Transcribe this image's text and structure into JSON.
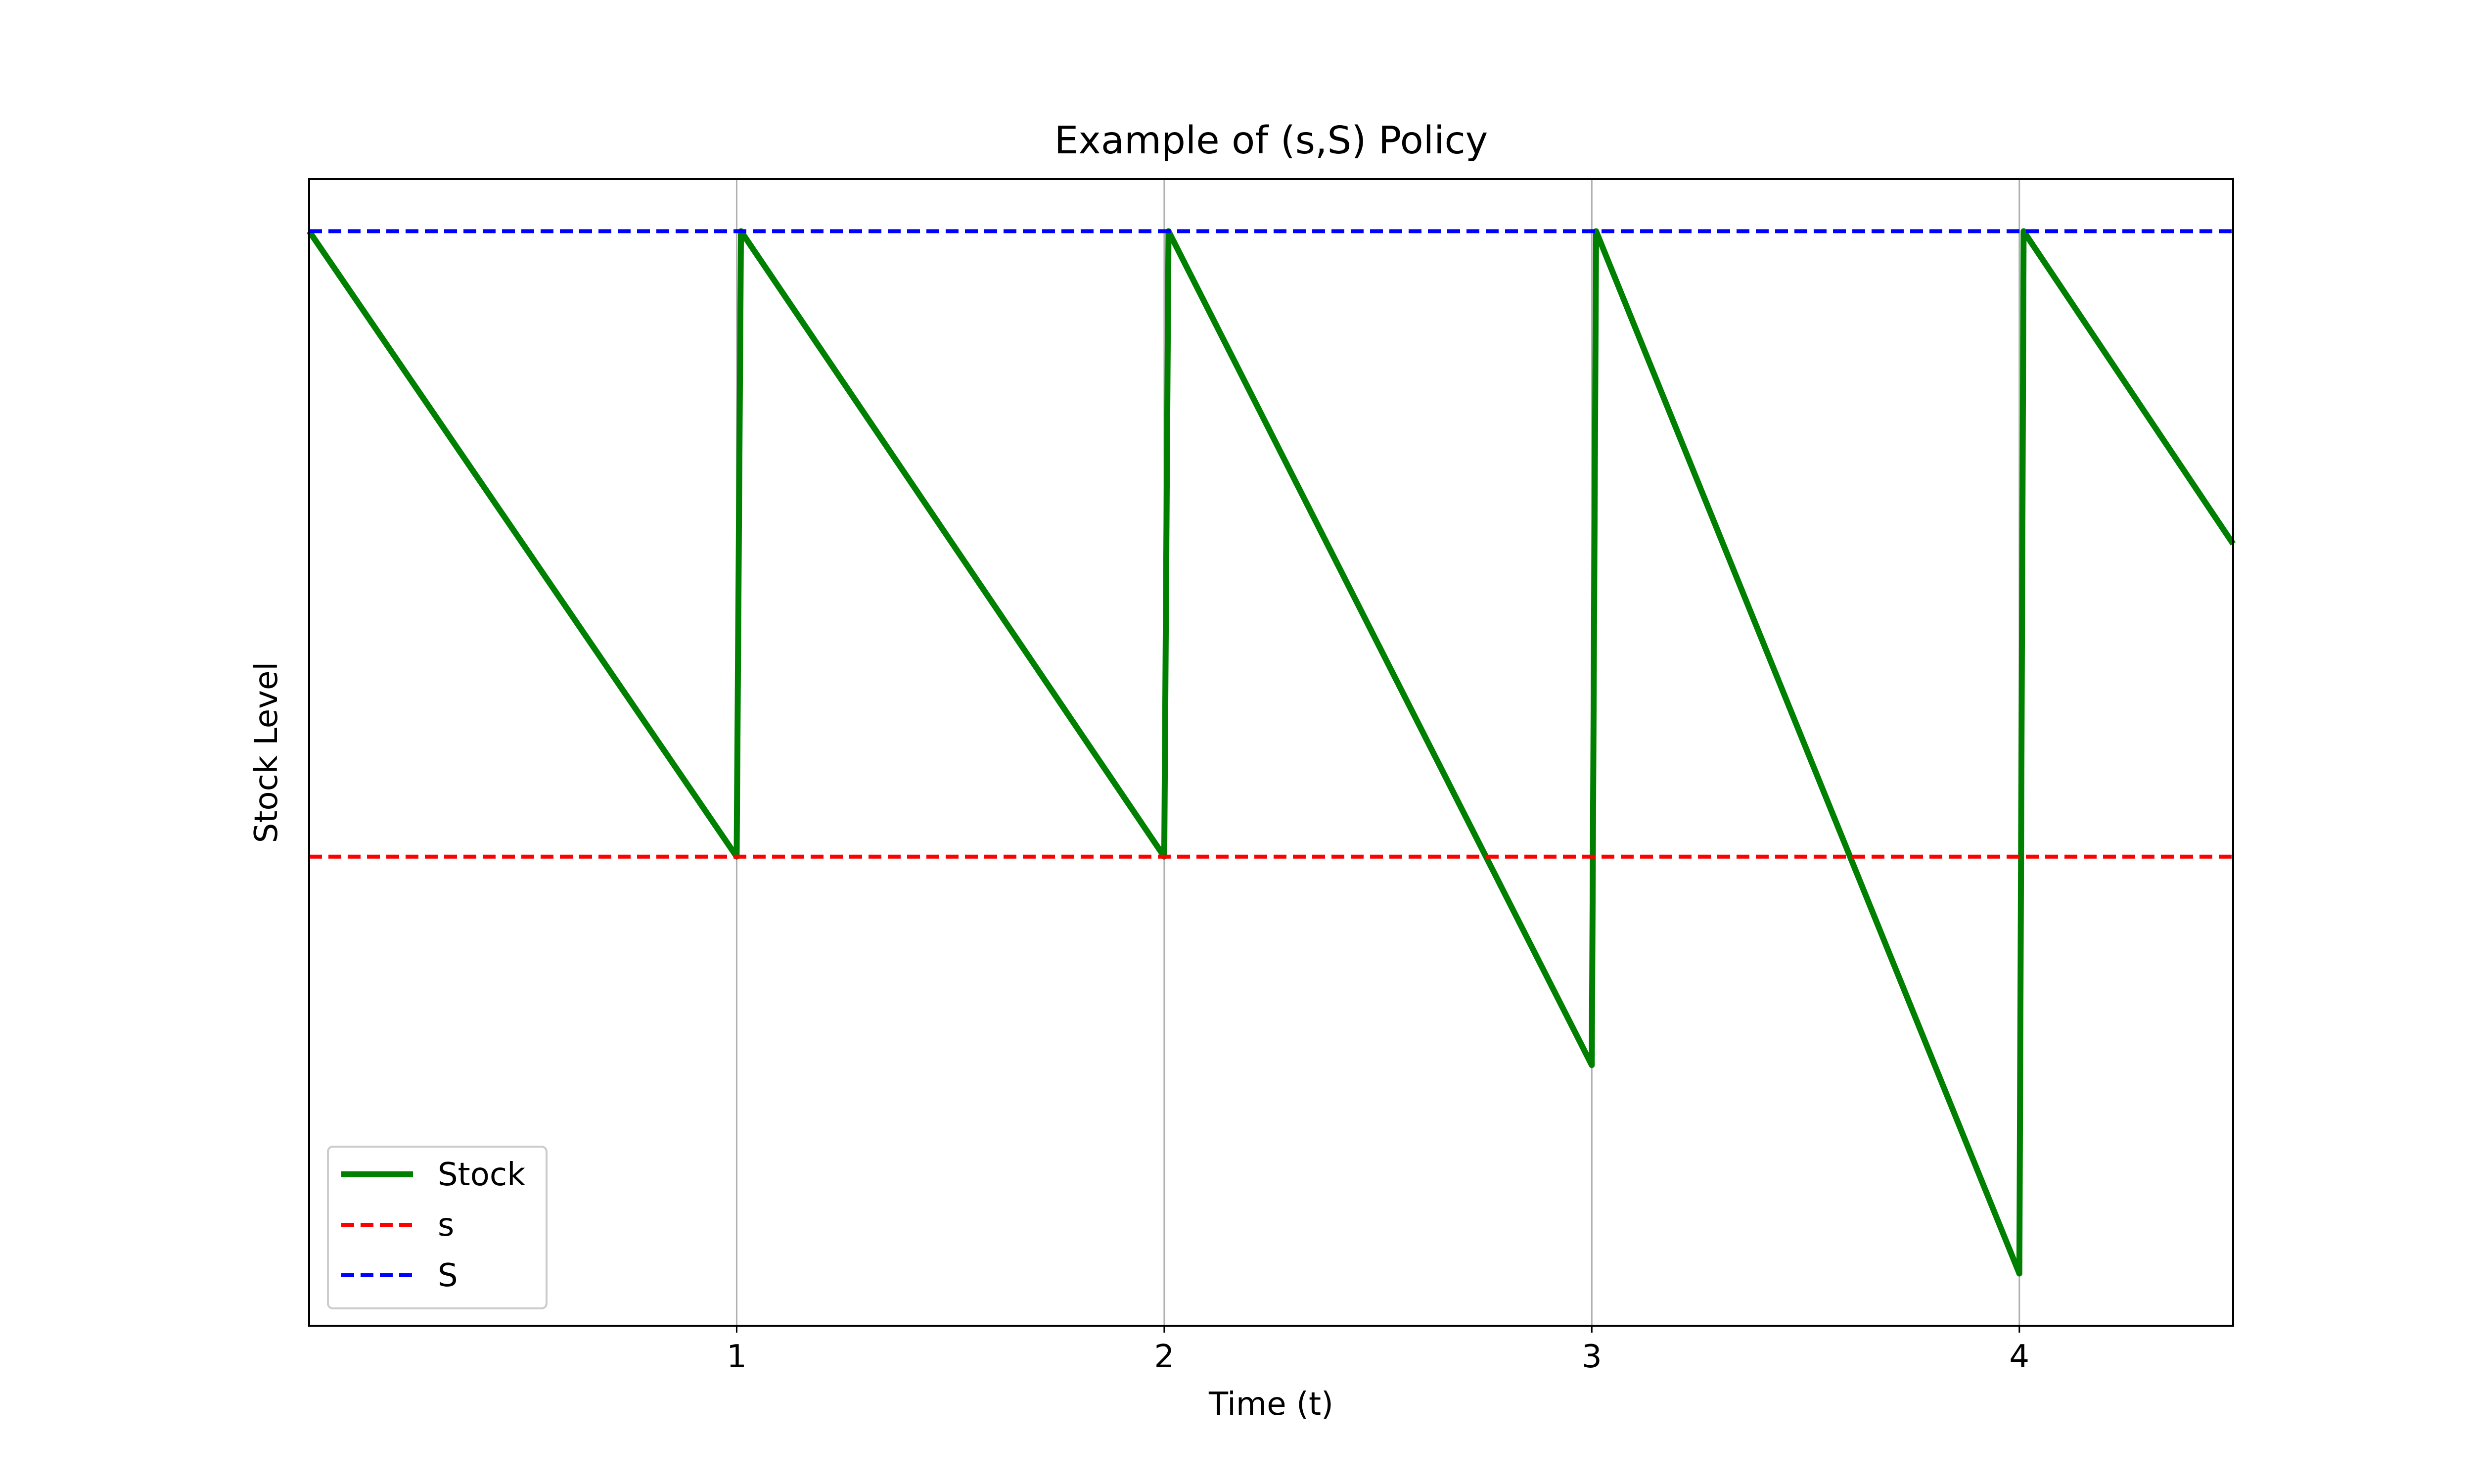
{
  "chart_data": {
    "type": "line",
    "title": "Example of (s,S) Policy",
    "xlabel": "Time (t)",
    "ylabel": "Stock Level",
    "xlim": [
      0,
      4.5
    ],
    "ylim": [
      -1.05,
      1.7
    ],
    "x_ticks": [
      1,
      2,
      3,
      4
    ],
    "y_ticks_shown": false,
    "grid": "vertical",
    "legend_position": "lower-left",
    "series": [
      {
        "name": "Stock",
        "color": "#008000",
        "style": "solid",
        "points": [
          [
            0,
            1.575
          ],
          [
            1.0,
            0.075
          ],
          [
            1.01,
            1.575
          ],
          [
            2.0,
            0.075
          ],
          [
            2.01,
            1.575
          ],
          [
            3.0,
            -0.425
          ],
          [
            3.01,
            1.575
          ],
          [
            4.0,
            -0.925
          ],
          [
            4.01,
            1.575
          ],
          [
            4.5,
            0.825
          ]
        ]
      },
      {
        "name": "s",
        "color": "#ff0000",
        "style": "dashed",
        "y": 0.075
      },
      {
        "name": "S",
        "color": "#0000ff",
        "style": "dashed",
        "y": 1.575
      }
    ]
  }
}
